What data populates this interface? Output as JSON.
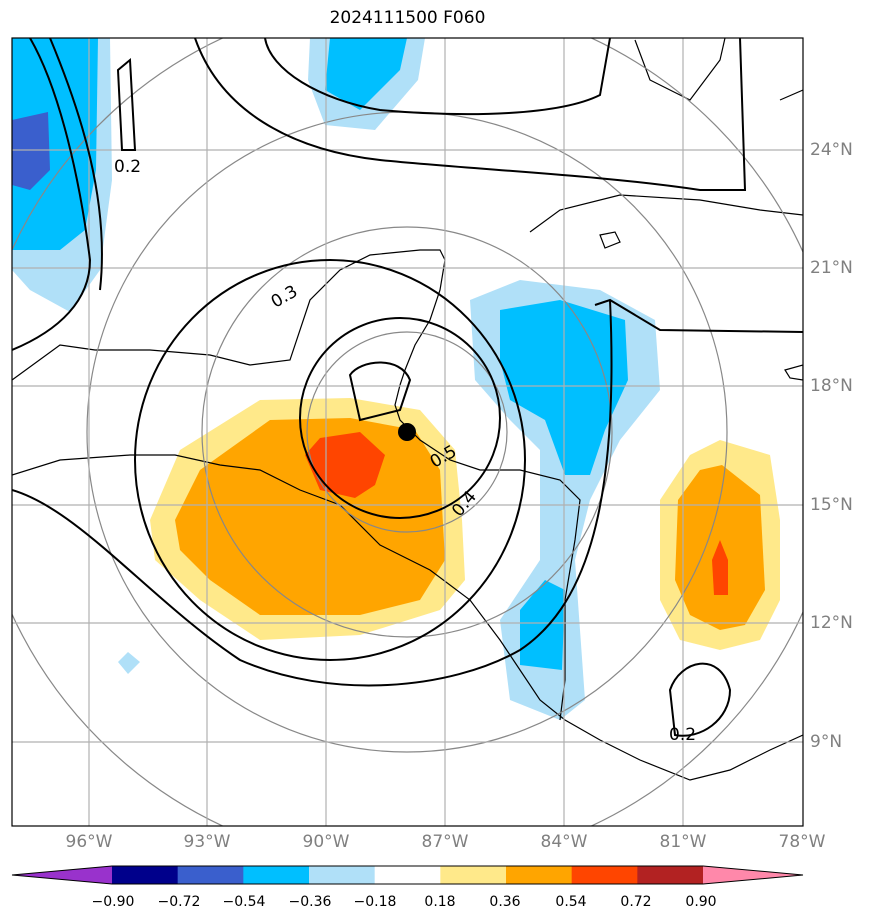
{
  "title": "2024111500 F060",
  "lat_labels": [
    {
      "label": "24°N"
    },
    {
      "label": "21°N"
    },
    {
      "label": "18°N"
    },
    {
      "label": "15°N"
    },
    {
      "label": "12°N"
    },
    {
      "label": "9°N"
    }
  ],
  "lon_labels": [
    {
      "label": "96°W"
    },
    {
      "label": "93°W"
    },
    {
      "label": "90°W"
    },
    {
      "label": "87°W"
    },
    {
      "label": "84°W"
    },
    {
      "label": "81°W"
    },
    {
      "label": "78°W"
    }
  ],
  "contour_labels": [
    {
      "label": "0.2"
    },
    {
      "label": "0.3"
    },
    {
      "label": "0.5"
    },
    {
      "label": "0.4"
    },
    {
      "label": "0.2"
    }
  ],
  "colorbar": {
    "tick_labels": [
      "−0.90",
      "−0.72",
      "−0.54",
      "−0.36",
      "−0.18",
      "0.18",
      "0.36",
      "0.54",
      "0.72",
      "0.90"
    ],
    "colors": [
      "#9932cc",
      "#00008b",
      "#3a5fcd",
      "#00bfff",
      "#b0e0f8",
      "#ffffff",
      "#ffe98a",
      "#ffa500",
      "#ff4500",
      "#b22222",
      "#ff88aa"
    ]
  },
  "storm_center": {
    "lat": 16.8,
    "lon": -88.0
  }
}
